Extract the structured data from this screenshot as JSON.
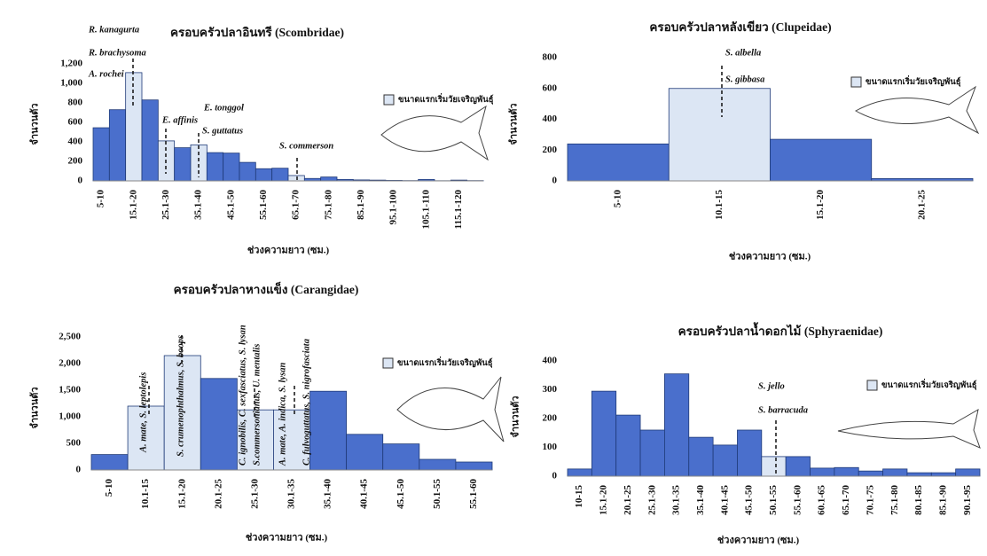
{
  "chart_data": [
    {
      "type": "bar",
      "title": "ครอบครัวปลาอินทรี (Scombridae)",
      "y_label": "จำนวนตัว",
      "x_label": "ช่วงความยาว (ซม.)",
      "categories": [
        "5-10",
        null,
        "15.1-20",
        null,
        "25.1-30",
        null,
        "35.1-40",
        null,
        "45.1-50",
        null,
        "55.1-60",
        null,
        "65.1-70",
        null,
        "75.1-80",
        null,
        "85.1-90",
        null,
        "95.1-100",
        null,
        "105.1-110",
        null,
        "115.1-120",
        null
      ],
      "values": [
        545,
        730,
        1110,
        830,
        410,
        340,
        370,
        290,
        285,
        190,
        125,
        130,
        55,
        25,
        40,
        15,
        10,
        8,
        5,
        3,
        15,
        2,
        8,
        3
      ],
      "colors": [
        "#4a6fcc",
        "#4a6fcc",
        "#dce6f4",
        "#4a6fcc",
        "#dce6f4",
        "#4a6fcc",
        "#dce6f4",
        "#4a6fcc",
        "#4a6fcc",
        "#4a6fcc",
        "#4a6fcc",
        "#4a6fcc",
        "#dce6f4",
        "#4a6fcc",
        "#4a6fcc",
        "#4a6fcc",
        "#4a6fcc",
        "#4a6fcc",
        "#4a6fcc",
        "#4a6fcc",
        "#4a6fcc",
        "#4a6fcc",
        "#4a6fcc",
        "#4a6fcc"
      ],
      "ylim": [
        0,
        1200
      ],
      "yticks": [
        0,
        200,
        400,
        600,
        800,
        {
          "value": 1000,
          "label": "1,000"
        },
        {
          "value": 1200,
          "label": "1,200"
        }
      ],
      "grid": false,
      "legend": {
        "label": "ขนาดแรกเริ่มวัยเจริญพันธุ์",
        "color": "#dce6f4"
      },
      "annotations": [
        "R. kanagurta",
        "R. brachysoma",
        "A. rochei",
        "E. affinis",
        "E. tonggol",
        "S. guttatus",
        "S. commerson"
      ]
    },
    {
      "type": "bar",
      "title": "ครอบครัวปลาหลังเขียว (Clupeidae)",
      "y_label": "จำนวนตัว",
      "x_label": "ช่วงความยาว (ซม.)",
      "categories": [
        "5-10",
        "10.1-15",
        "15.1-20",
        "20.1-25"
      ],
      "values": [
        240,
        600,
        270,
        15
      ],
      "colors": [
        "#4a6fcc",
        "#dce6f4",
        "#4a6fcc",
        "#4a6fcc"
      ],
      "ylim": [
        0,
        800
      ],
      "yticks": [
        0,
        200,
        400,
        600,
        800
      ],
      "grid": false,
      "legend": {
        "label": "ขนาดแรกเริ่มวัยเจริญพันธุ์",
        "color": "#dce6f4"
      },
      "annotations": [
        "S. albella",
        "S. gibbasa"
      ]
    },
    {
      "type": "bar",
      "title": "ครอบครัวปลาหางแข็ง (Carangidae)",
      "y_label": "จำนวนตัว",
      "x_label": "ช่วงความยาว (ซม.)",
      "categories": [
        "5-10",
        "10.1-15",
        "15.1-20",
        "20.1-25",
        "25.1-30",
        "30.1-35",
        "35.1-40",
        "40.1-45",
        "45.1-50",
        "50.1-55",
        "55.1-60"
      ],
      "values": [
        290,
        1200,
        2150,
        1720,
        1130,
        1130,
        1480,
        670,
        490,
        200,
        150
      ],
      "colors": [
        "#4a6fcc",
        "#dce6f4",
        "#dce6f4",
        "#4a6fcc",
        "#dce6f4",
        "#dce6f4",
        "#4a6fcc",
        "#4a6fcc",
        "#4a6fcc",
        "#4a6fcc",
        "#4a6fcc"
      ],
      "ylim": [
        0,
        2500
      ],
      "yticks": [
        0,
        500,
        {
          "value": 1000,
          "label": "1,000"
        },
        {
          "value": 1500,
          "label": "1,500"
        },
        {
          "value": 2000,
          "label": "2,000"
        },
        {
          "value": 2500,
          "label": "2,500"
        }
      ],
      "grid": false,
      "legend": {
        "label": "ขนาดแรกเริ่มวัยเจริญพันธุ์",
        "color": "#dce6f4"
      },
      "annotations": [
        "A. mate, S. leptolepis",
        "S. crumenophthalmus, S. boops",
        "C. ignobilis, C. sexfasciatus, S. lysan",
        "S.commersonianus, U. mentalis",
        "A. mate, A. indica, S. lysan",
        "C. fulvoguttatus, S. nigrofasciata"
      ]
    },
    {
      "type": "bar",
      "title": "ครอบครัวปลาน้ำดอกไม้ (Sphyraenidae)",
      "y_label": "จำนวนตัว",
      "x_label": "ช่วงความยาว (ซม.)",
      "categories": [
        "10-15",
        "15.1-20",
        "20.1-25",
        "25.1-30",
        "30.1-35",
        "35.1-40",
        "40.1-45",
        "45.1-50",
        "50.1-55",
        "55.1-60",
        "60.1-65",
        "65.1-70",
        "70.1-75",
        "75.1-80",
        "80.1-85",
        "85.1-90",
        "90.1-95"
      ],
      "values": [
        25,
        295,
        212,
        160,
        355,
        135,
        108,
        160,
        68,
        68,
        28,
        30,
        18,
        25,
        12,
        12,
        25
      ],
      "colors": [
        "#4a6fcc",
        "#4a6fcc",
        "#4a6fcc",
        "#4a6fcc",
        "#4a6fcc",
        "#4a6fcc",
        "#4a6fcc",
        "#4a6fcc",
        "#dce6f4",
        "#4a6fcc",
        "#4a6fcc",
        "#4a6fcc",
        "#4a6fcc",
        "#4a6fcc",
        "#4a6fcc",
        "#4a6fcc",
        "#4a6fcc"
      ],
      "ylim": [
        0,
        400
      ],
      "yticks": [
        0,
        100,
        200,
        300,
        400
      ],
      "grid": false,
      "legend": {
        "label": "ขนาดแรกเริ่มวัยเจริญพันธุ์",
        "color": "#dce6f4"
      },
      "annotations": [
        "S. jello",
        "S. barracuda"
      ]
    }
  ]
}
